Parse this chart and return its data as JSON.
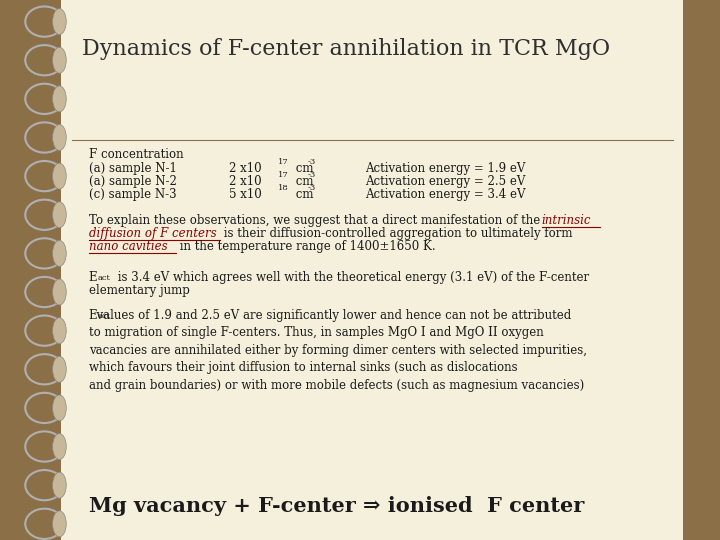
{
  "title": "Dynamics of F-center annihilation in TCR MgO",
  "bg_color": "#8B6F47",
  "paper_color": "#F5F0DC",
  "title_color": "#2F2F2F",
  "title_fontsize": 16,
  "line_color": "#8B6F47",
  "red_color": "#8B0000",
  "black_color": "#1A1A1A",
  "table_header": "F concentration",
  "table_rows": [
    [
      "(a) sample N-1",
      "2 x10",
      "17",
      " cm",
      "-3",
      "Activation energy = 1.9 eV"
    ],
    [
      "(a) sample N-2",
      "2 x10",
      "17",
      " cm",
      "-3",
      "Activation energy = 2.5 eV"
    ],
    [
      "(c) sample N-3",
      "5 x10",
      "18",
      " cm",
      "-3",
      "Activation energy = 3.4 eV"
    ]
  ],
  "spiral_color": "#B0B0B0",
  "knob_color": "#C8B89A",
  "para4": "Mg vacancy + F-center ⇒ ionised  F center"
}
